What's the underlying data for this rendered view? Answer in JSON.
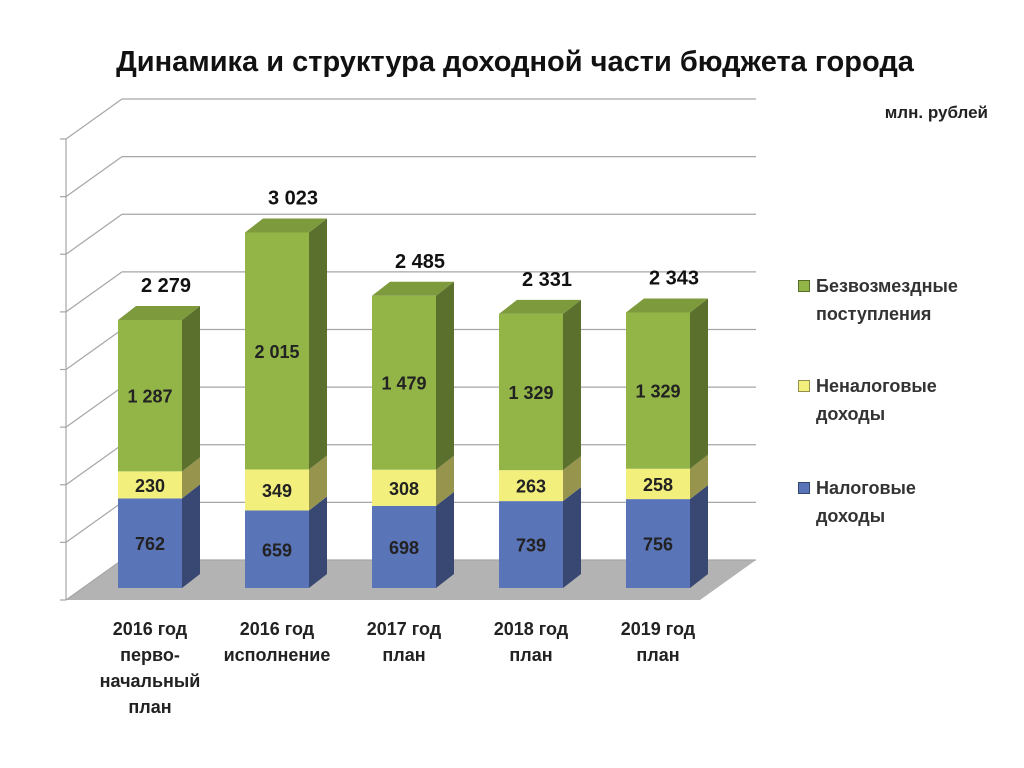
{
  "title": "Динамика и структура доходной части бюджета города",
  "unit": "млн. рублей",
  "colors": {
    "tax": "#5a74b8",
    "nontax": "#f2ef7c",
    "grant": "#93b548",
    "floor": "#b3b3b3",
    "grid": "#a6a6a6"
  },
  "chart_data": {
    "type": "bar",
    "stacked": true,
    "three_d": true,
    "grid": true,
    "legend_position": "right",
    "categories": [
      "2016 год\nперво-\nначальный\nплан",
      "2016 год\nисполнение",
      "2017 год\nплан",
      "2018 год\nплан",
      "2019 год\nплан"
    ],
    "series": [
      {
        "name": "Налоговые\nдоходы",
        "values": [
          762,
          659,
          698,
          739,
          756
        ],
        "labels": [
          "762",
          "659",
          "698",
          "739",
          "756"
        ]
      },
      {
        "name": "Неналоговые\nдоходы",
        "values": [
          230,
          349,
          308,
          263,
          258
        ],
        "labels": [
          "230",
          "349",
          "308",
          "263",
          "258"
        ]
      },
      {
        "name": "Безвозмездные\nпоступления",
        "values": [
          1287,
          2015,
          1479,
          1329,
          1329
        ],
        "labels": [
          "1 287",
          "2 015",
          "1 479",
          "1 329",
          "1 329"
        ]
      }
    ],
    "totals": [
      2279,
      3023,
      2485,
      2331,
      2343
    ],
    "total_labels": [
      "2 279",
      "3 023",
      "2 485",
      "2 331",
      "2 343"
    ],
    "ylim": [
      0,
      4000
    ]
  }
}
